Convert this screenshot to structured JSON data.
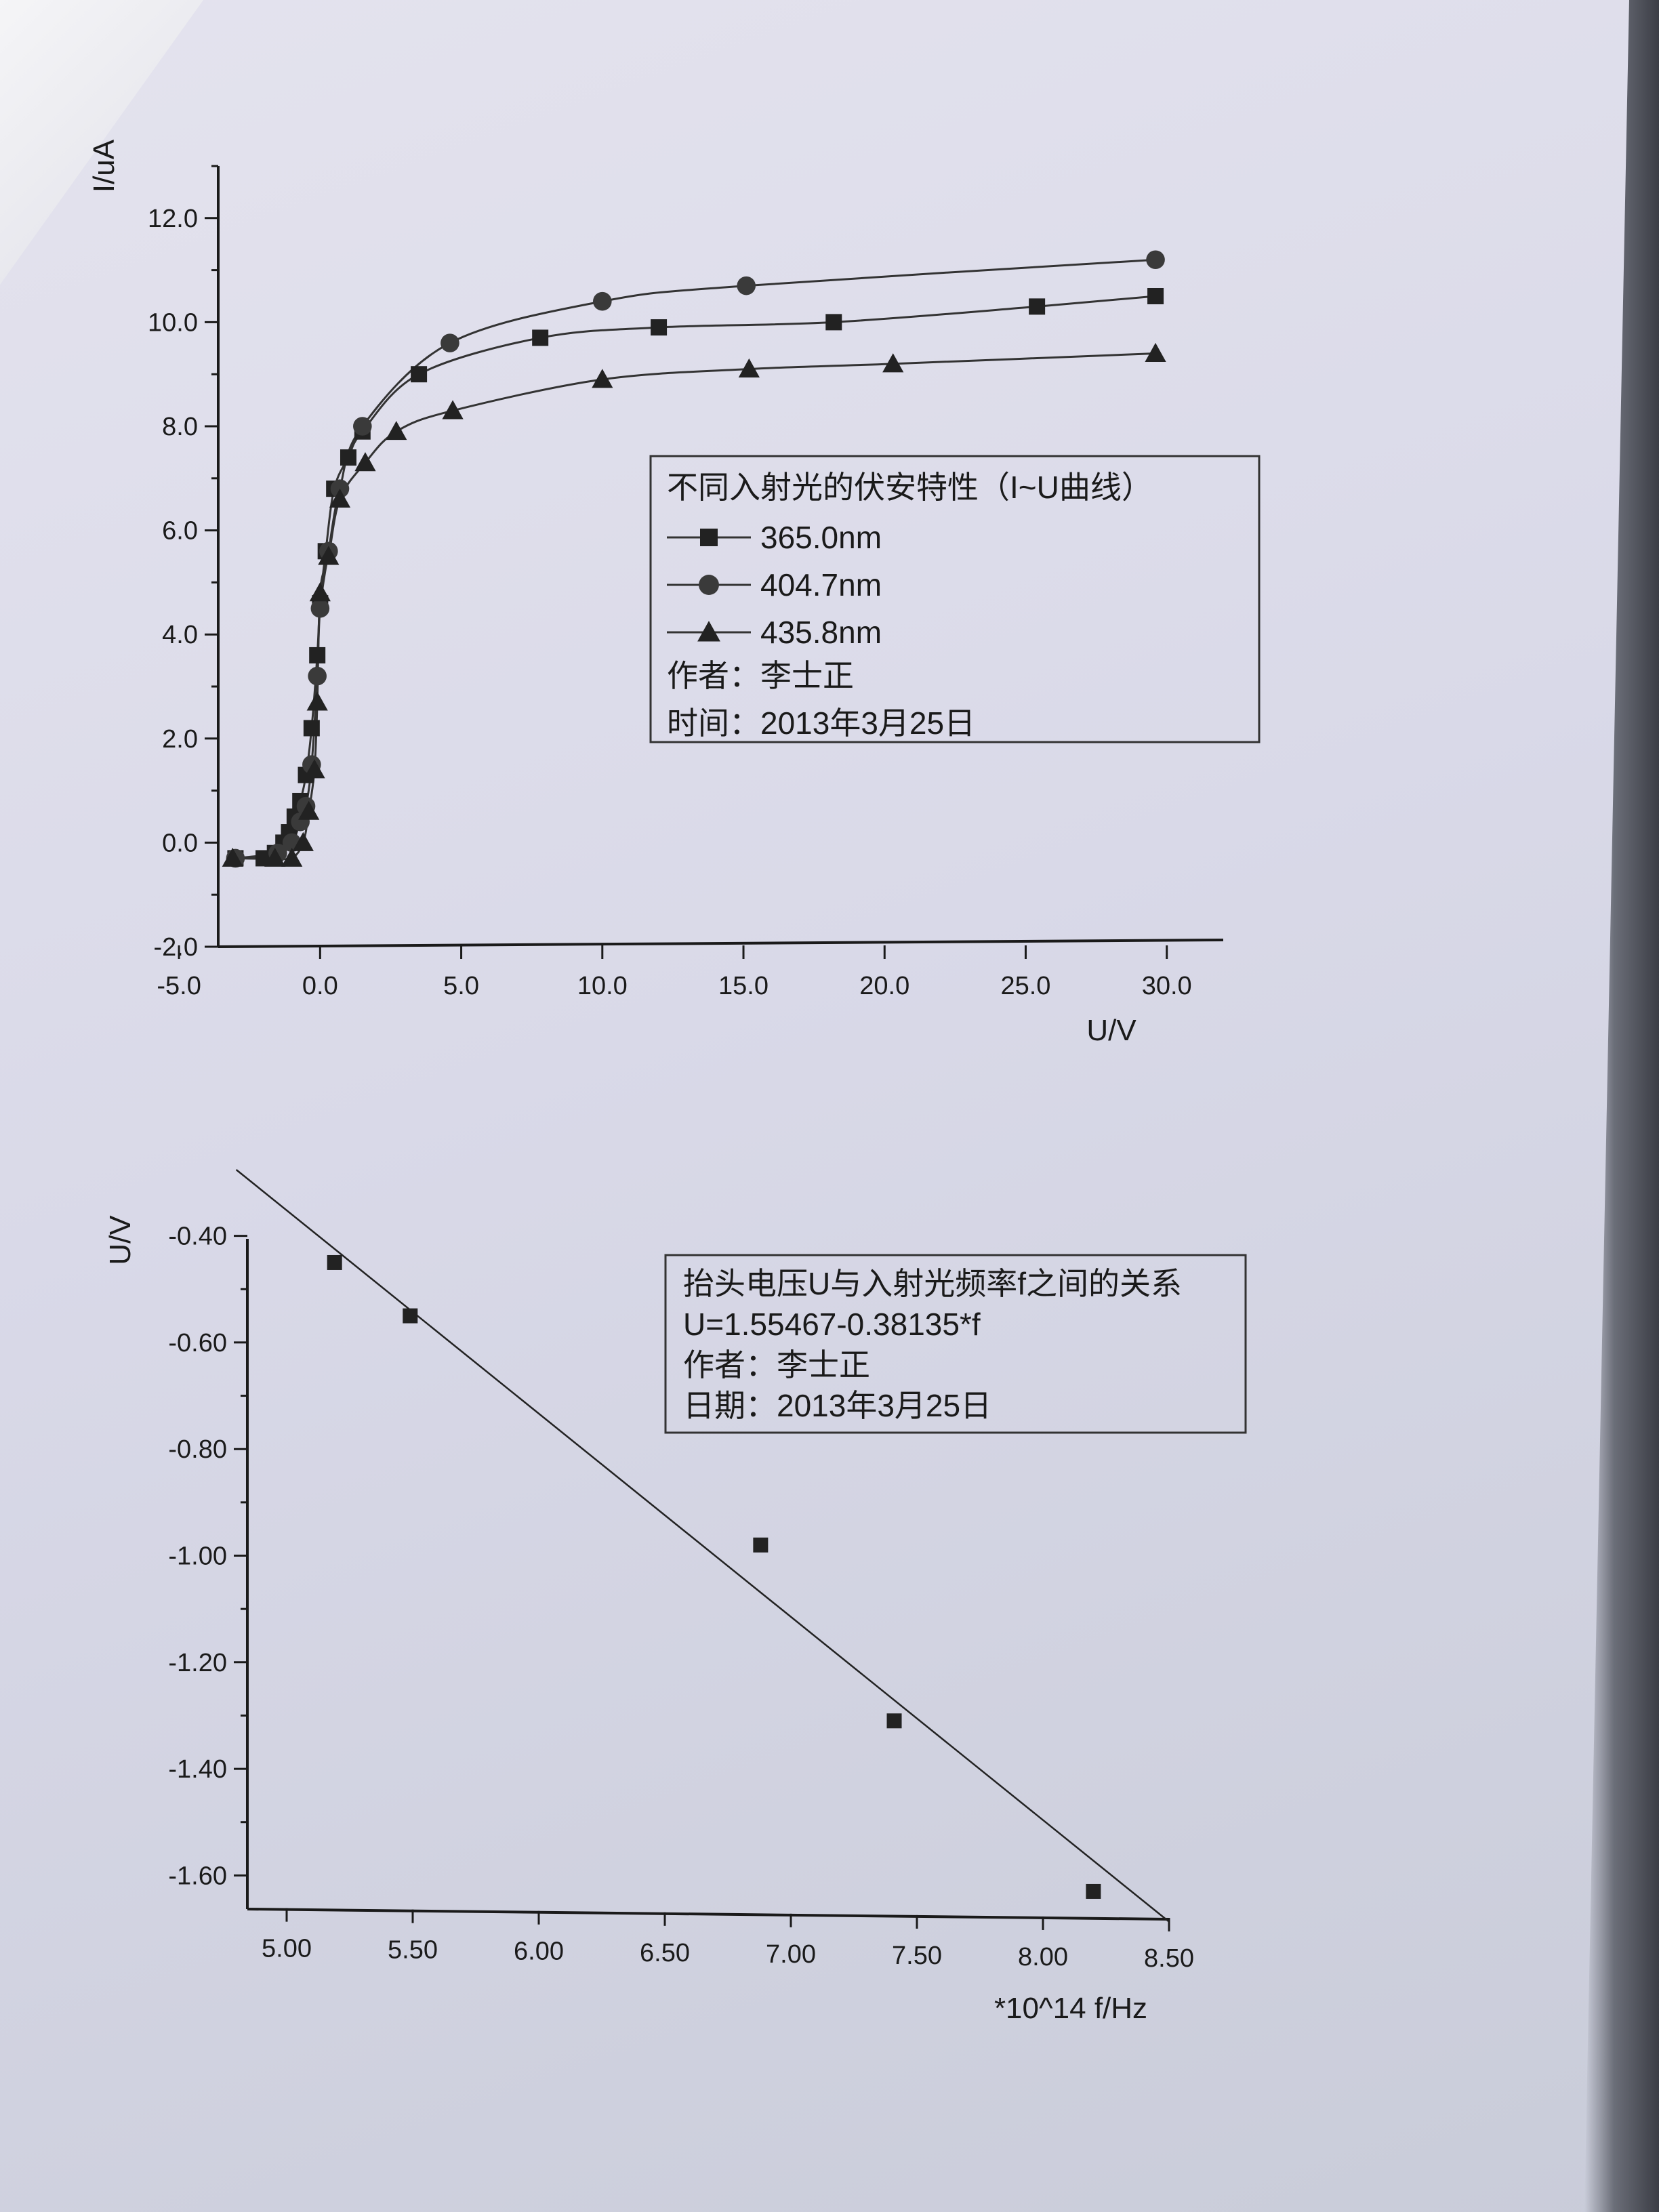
{
  "chart_data": [
    {
      "type": "line",
      "xlabel": "U/V",
      "ylabel": "I/uA",
      "xlim": [
        -7.5,
        32.0
      ],
      "ylim": [
        -2.0,
        13.0
      ],
      "xticks": [
        -5.0,
        0.0,
        5.0,
        10.0,
        15.0,
        20.0,
        25.0,
        30.0
      ],
      "yticks": [
        -2.0,
        0.0,
        2.0,
        4.0,
        6.0,
        8.0,
        10.0,
        12.0
      ],
      "xtick_labels": [
        "-5.0",
        "0.0",
        "5.0",
        "10.0",
        "15.0",
        "20.0",
        "25.0",
        "30.0"
      ],
      "ytick_labels": [
        "-2.0",
        "0.0",
        "2.0",
        "4.0",
        "6.0",
        "8.0",
        "10.0",
        "12.0"
      ],
      "legend": {
        "title": "不同入射光的伏安特性（I~U曲线）",
        "placement": "center-right",
        "notes": [
          "作者：李士正",
          "时间：2013年3月25日"
        ]
      },
      "series": [
        {
          "name": "365.0nm",
          "marker": "square",
          "x": [
            -3.0,
            -2.0,
            -1.6,
            -1.3,
            -1.1,
            -0.9,
            -0.7,
            -0.5,
            -0.3,
            -0.1,
            0.0,
            0.2,
            0.5,
            1.0,
            1.5,
            3.5,
            7.8,
            12.0,
            18.2,
            25.4,
            29.6
          ],
          "y": [
            -0.3,
            -0.3,
            -0.2,
            0.0,
            0.2,
            0.5,
            0.8,
            1.3,
            2.2,
            3.6,
            4.6,
            5.6,
            6.8,
            7.4,
            7.9,
            9.0,
            9.7,
            9.9,
            10.0,
            10.3,
            10.5
          ]
        },
        {
          "name": "404.7nm",
          "marker": "circle",
          "x": [
            -3.0,
            -1.5,
            -1.0,
            -0.7,
            -0.5,
            -0.3,
            -0.1,
            0.0,
            0.3,
            0.7,
            1.5,
            4.6,
            10.0,
            15.1,
            29.6
          ],
          "y": [
            -0.3,
            -0.2,
            0.0,
            0.4,
            0.7,
            1.5,
            3.2,
            4.5,
            5.6,
            6.8,
            8.0,
            9.6,
            10.4,
            10.7,
            11.2
          ]
        },
        {
          "name": "435.8nm",
          "marker": "triangle",
          "x": [
            -3.1,
            -1.6,
            -1.0,
            -0.6,
            -0.4,
            -0.2,
            -0.1,
            0.0,
            0.3,
            0.7,
            1.6,
            2.7,
            4.7,
            10.0,
            15.2,
            20.3,
            29.6
          ],
          "y": [
            -0.3,
            -0.3,
            -0.3,
            0.0,
            0.6,
            1.4,
            2.7,
            4.8,
            5.5,
            6.6,
            7.3,
            7.9,
            8.3,
            8.9,
            9.1,
            9.2,
            9.4
          ]
        }
      ]
    },
    {
      "type": "scatter",
      "xlabel": "*10^14 f/Hz",
      "ylabel": "U/V",
      "xlim": [
        4.75,
        8.5
      ],
      "ylim": [
        -1.7,
        -0.3
      ],
      "xticks": [
        5.0,
        5.5,
        6.0,
        6.5,
        7.0,
        7.5,
        8.0,
        8.5
      ],
      "yticks": [
        -0.4,
        -0.6,
        -0.8,
        -1.0,
        -1.2,
        -1.4,
        -1.6
      ],
      "xtick_labels": [
        "5.00",
        "5.50",
        "6.00",
        "6.50",
        "7.00",
        "7.50",
        "8.00",
        "8.50"
      ],
      "ytick_labels": [
        "-0.40",
        "-0.60",
        "-0.80",
        "-1.00",
        "-1.20",
        "-1.40",
        "-1.60"
      ],
      "legend": {
        "placement": "top-right",
        "lines": [
          "抬头电压U与入射光频率f之间的关系",
          "U=1.55467-0.38135*f",
          "作者：李士正",
          "日期：2013年3月25日"
        ]
      },
      "points": {
        "marker": "square",
        "x": [
          5.19,
          5.49,
          6.88,
          7.41,
          8.2
        ],
        "y": [
          -0.45,
          -0.55,
          -0.98,
          -1.31,
          -1.63
        ]
      },
      "fit": {
        "intercept": 1.55467,
        "slope": -0.38135,
        "x_range": [
          4.8,
          8.5
        ]
      }
    }
  ]
}
